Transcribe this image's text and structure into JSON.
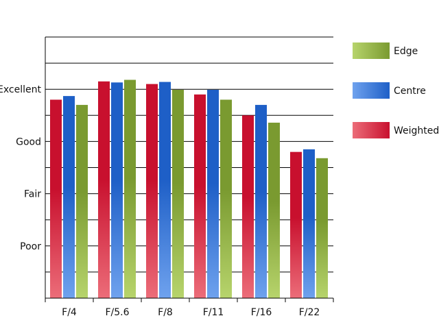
{
  "chart_data": {
    "type": "bar",
    "categories": [
      "F/4",
      "F/5.6",
      "F/8",
      "F/11",
      "F/16",
      "F/22"
    ],
    "y_ticks": [
      {
        "value": 1,
        "label": "Poor"
      },
      {
        "value": 2,
        "label": "Fair"
      },
      {
        "value": 3,
        "label": "Good"
      },
      {
        "value": 4,
        "label": "Excellent"
      }
    ],
    "ylim": [
      0,
      5
    ],
    "grid": true,
    "legend_position": "right",
    "series": [
      {
        "name": "Weighted",
        "color": "#c8102e",
        "values": [
          3.8,
          4.15,
          4.1,
          3.9,
          3.5,
          2.8
        ]
      },
      {
        "name": "Centre",
        "color": "#1e5fc7",
        "values": [
          3.87,
          4.13,
          4.14,
          3.99,
          3.7,
          2.85
        ]
      },
      {
        "name": "Edge",
        "color": "#7a9a30",
        "values": [
          3.7,
          4.18,
          3.99,
          3.8,
          3.36,
          2.68
        ]
      }
    ],
    "legend_order": [
      "Edge",
      "Centre",
      "Weighted"
    ]
  }
}
